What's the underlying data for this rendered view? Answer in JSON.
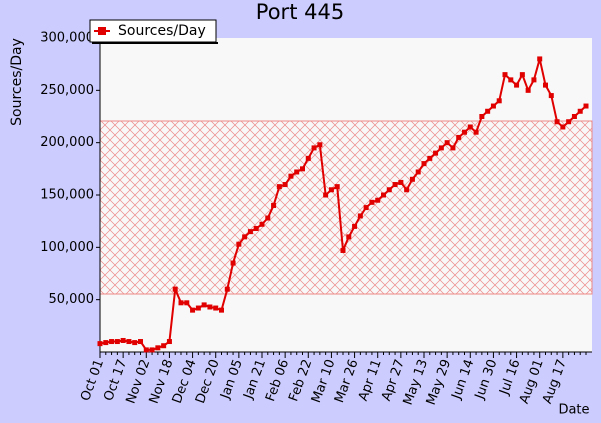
{
  "chart_data": {
    "type": "line",
    "title": "Port 445",
    "y_label": "Sources/Day",
    "x_label": "Date",
    "categories": [
      "Oct 01",
      null,
      null,
      null,
      "Oct 17",
      null,
      null,
      null,
      "Nov 02",
      null,
      null,
      null,
      "Nov 18",
      null,
      null,
      null,
      "Dec 04",
      null,
      null,
      null,
      "Dec 20",
      null,
      null,
      null,
      "Jan 05",
      null,
      null,
      null,
      "Jan 21",
      null,
      null,
      null,
      "Feb 06",
      null,
      null,
      null,
      "Feb 22",
      null,
      null,
      null,
      "Mar 10",
      null,
      null,
      null,
      "Mar 26",
      null,
      null,
      null,
      "Apr 11",
      null,
      null,
      null,
      "Apr 27",
      null,
      null,
      null,
      "May 13",
      null,
      null,
      null,
      "May 29",
      null,
      null,
      null,
      "Jun 14",
      null,
      null,
      null,
      "Jun 30",
      null,
      null,
      null,
      "Jul 16",
      null,
      null,
      null,
      "Aug 01",
      null,
      null,
      null,
      "Aug 17",
      null,
      null,
      null,
      null
    ],
    "series": [
      {
        "name": "Sources/Day",
        "color": "#e00000",
        "values": [
          8000,
          9000,
          10000,
          10000,
          11000,
          10000,
          9000,
          10000,
          2000,
          2000,
          4000,
          6000,
          10000,
          60000,
          47000,
          47000,
          40000,
          42000,
          45000,
          43000,
          42000,
          40000,
          60000,
          85000,
          103000,
          110000,
          115000,
          118000,
          122000,
          128000,
          140000,
          158000,
          160000,
          168000,
          172000,
          175000,
          185000,
          195000,
          198000,
          150000,
          155000,
          158000,
          97000,
          110000,
          120000,
          130000,
          138000,
          143000,
          145000,
          150000,
          155000,
          160000,
          162000,
          155000,
          165000,
          172000,
          180000,
          185000,
          190000,
          195000,
          200000,
          195000,
          205000,
          210000,
          215000,
          210000,
          225000,
          230000,
          235000,
          240000,
          265000,
          260000,
          255000,
          265000,
          250000,
          260000,
          280000,
          255000,
          245000,
          220000,
          215000,
          220000,
          225000,
          230000,
          235000
        ]
      }
    ],
    "ylim": [
      0,
      300000
    ],
    "yticks": [
      {
        "value": 50000,
        "label": "50,000"
      },
      {
        "value": 100000,
        "label": "100,000"
      },
      {
        "value": 150000,
        "label": "150,000"
      },
      {
        "value": 200000,
        "label": "200,000"
      },
      {
        "value": 250000,
        "label": "250,000"
      },
      {
        "value": 300000,
        "label": "300,000"
      }
    ],
    "legend": "upper left"
  }
}
